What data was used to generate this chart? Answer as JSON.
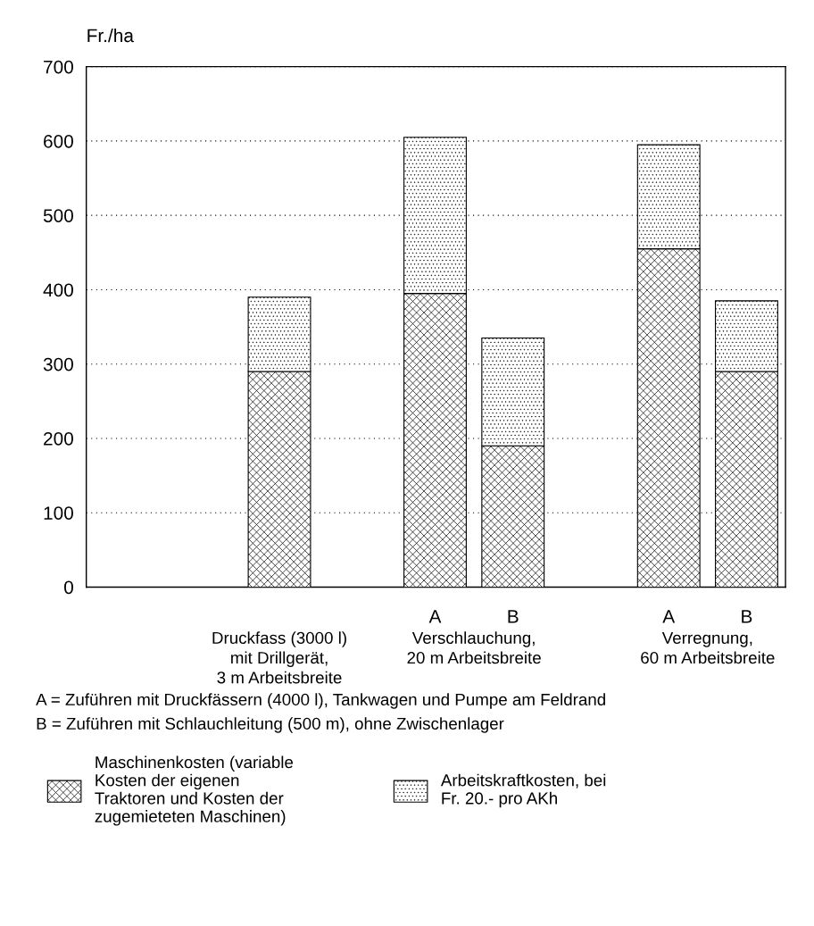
{
  "chart_data": {
    "type": "bar",
    "stacked": true,
    "ylabel": "Fr./ha",
    "categories": [
      null,
      null,
      null,
      "A",
      "B",
      null,
      "A",
      "B"
    ],
    "series": [
      {
        "name": "Maschinenkosten (variable\nKosten der eigenen\nTraktoren und Kosten der\nzugemieteten Maschinen)",
        "color": "#000000",
        "values": [
          null,
          290,
          null,
          395,
          190,
          null,
          455,
          290
        ]
      },
      {
        "name": "Arbeitskraftkosten, bei\nFr. 20.- pro AKh",
        "color": "#000000",
        "values": [
          null,
          100,
          null,
          210,
          145,
          null,
          140,
          95
        ]
      }
    ],
    "ylim": [
      0,
      700
    ],
    "yticks": [
      0,
      100,
      200,
      300,
      400,
      500,
      600,
      700
    ],
    "grid": "y",
    "legend": "bottom",
    "annotations": [
      "Druckfass (3000 l)\nmit Drillgerät,\n3 m Arbeitsbreite",
      "Verschlauchung,\n20 m Arbeitsbreite",
      "Verregnung,\n60 m Arbeitsbreite",
      "A = Zuführen mit Druckfässern (4000 l), Tankwagen und Pumpe am Feldrand",
      "B = Zuführen mit Schlauchleitung (500 m), ohne Zwischenlager"
    ]
  }
}
